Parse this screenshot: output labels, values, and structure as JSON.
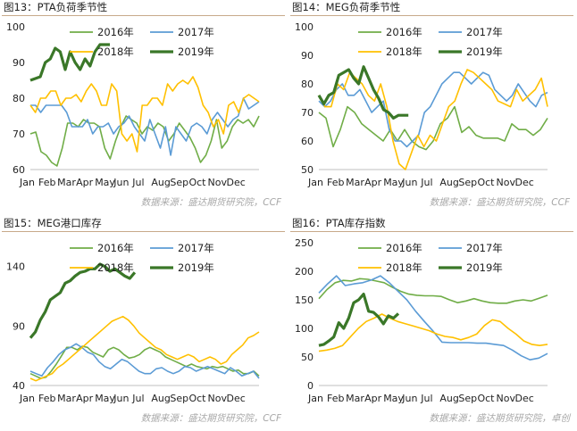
{
  "source_note": "数据来源：盛达期货研究院，CCF",
  "source_note_4": "数据来源：盛达期货研究院，卓创",
  "colors": {
    "2016": "#70ad47",
    "2017": "#5b9bd5",
    "2018": "#ffc000",
    "2019": "#3a7728"
  },
  "chart_data": [
    {
      "type": "line",
      "title": "图13：PTA负荷季节性",
      "x_labels": [
        "Jan",
        "Feb",
        "Mar",
        "Apr",
        "May",
        "Jun",
        "Jul",
        "Aug",
        "Sep",
        "Oct",
        "Nov",
        "Dec"
      ],
      "ylim": [
        60,
        100
      ],
      "yticks": [
        60,
        70,
        80,
        90,
        100
      ],
      "series": [
        {
          "name": "2016年",
          "values": [
            70,
            70.5,
            65,
            64,
            62,
            61,
            66,
            73,
            73,
            72,
            74,
            73,
            73,
            72,
            66,
            63,
            68,
            72,
            75,
            74,
            73,
            70,
            72,
            71,
            73,
            72,
            68,
            70,
            73,
            71,
            69,
            66,
            62,
            64,
            68,
            74,
            66,
            68,
            72,
            74,
            73,
            74,
            72,
            75
          ]
        },
        {
          "name": "2017年",
          "values": [
            78,
            78,
            76,
            78,
            78,
            78,
            78,
            76,
            72,
            72,
            72,
            74,
            70,
            72,
            72,
            73,
            70,
            72,
            73,
            75,
            72,
            70,
            68,
            74,
            70,
            66,
            72,
            64,
            72,
            70,
            68,
            72,
            73,
            72,
            70,
            74,
            76,
            74,
            72,
            74,
            75,
            80,
            77,
            78,
            79
          ]
        },
        {
          "name": "2018年",
          "values": [
            78,
            76,
            80,
            80,
            82,
            82,
            78,
            80,
            80,
            81,
            79,
            82,
            84,
            82,
            78,
            78,
            84,
            82,
            70,
            68,
            70,
            65,
            78,
            78,
            80,
            80,
            78,
            84,
            82,
            84,
            85,
            84,
            86,
            83,
            78,
            76,
            72,
            74,
            70,
            78,
            79,
            76,
            80,
            81,
            80,
            79
          ]
        },
        {
          "name": "2019年",
          "values": [
            85,
            85.5,
            86,
            90,
            91,
            94,
            93,
            88,
            93,
            90,
            88,
            91,
            89,
            93,
            95,
            95,
            95
          ]
        }
      ]
    },
    {
      "type": "line",
      "title": "图14：MEG负荷季节性",
      "x_labels": [
        "Jan",
        "Feb",
        "Mar",
        "Apr",
        "May",
        "Jun",
        "Jul",
        "Aug",
        "Sep",
        "Oct",
        "Nov",
        "Dec"
      ],
      "ylim": [
        50,
        100
      ],
      "yticks": [
        50,
        60,
        70,
        80,
        90,
        100
      ],
      "series": [
        {
          "name": "2016年",
          "values": [
            70,
            68,
            58,
            64,
            72,
            70,
            66,
            64,
            62,
            60,
            64,
            60,
            64,
            60,
            58,
            57,
            60,
            66,
            68,
            72,
            63,
            65,
            62,
            61,
            61,
            61,
            60,
            66,
            64,
            64,
            62,
            64,
            68
          ]
        },
        {
          "name": "2017年",
          "values": [
            74,
            72,
            74,
            78,
            80,
            76,
            76,
            78,
            74,
            70,
            72,
            74,
            64,
            60,
            60,
            58,
            60,
            62,
            70,
            72,
            76,
            80,
            82,
            84,
            84,
            82,
            80,
            82,
            84,
            83,
            78,
            76,
            74,
            76,
            80,
            77,
            74,
            72,
            76,
            77
          ]
        },
        {
          "name": "2018年",
          "values": [
            76,
            72,
            72,
            80,
            78,
            84,
            82,
            80,
            76,
            74,
            80,
            72,
            60,
            52,
            50,
            56,
            62,
            58,
            62,
            60,
            66,
            72,
            74,
            80,
            85,
            84,
            82,
            80,
            78,
            74,
            73,
            72,
            78,
            74,
            76,
            78,
            82,
            72
          ]
        },
        {
          "name": "2019年",
          "values": [
            76,
            73,
            76,
            77,
            83,
            84,
            85,
            82,
            80,
            86,
            82,
            78,
            75,
            71,
            70,
            68,
            69,
            69,
            69
          ]
        }
      ]
    },
    {
      "type": "line",
      "title": "图15：MEG港口库存",
      "x_labels": [
        "Jan",
        "Feb",
        "Mar",
        "Apr",
        "May",
        "Jun",
        "Jul",
        "Aug",
        "Sep",
        "Oct",
        "Nov",
        "Dec"
      ],
      "ylim": [
        40,
        160
      ],
      "yticks": [
        40,
        90,
        140
      ],
      "series": [
        {
          "name": "2016年",
          "values": [
            50,
            48,
            46,
            47,
            52,
            58,
            65,
            72,
            72,
            70,
            73,
            72,
            68,
            66,
            64,
            70,
            72,
            70,
            66,
            63,
            64,
            66,
            70,
            72,
            70,
            68,
            64,
            62,
            60,
            58,
            56,
            58,
            56,
            55,
            54,
            56,
            55,
            56,
            54,
            52,
            53,
            50,
            50,
            52,
            48
          ]
        },
        {
          "name": "2017年",
          "values": [
            52,
            50,
            48,
            55,
            60,
            66,
            70,
            72,
            75,
            72,
            68,
            66,
            60,
            56,
            54,
            58,
            62,
            60,
            56,
            52,
            50,
            50,
            54,
            55,
            52,
            50,
            52,
            56,
            55,
            52,
            54,
            56,
            54,
            52,
            50,
            55,
            52,
            48,
            50,
            52,
            46
          ]
        },
        {
          "name": "2018年",
          "values": [
            46,
            44,
            46,
            48,
            50,
            55,
            58,
            62,
            66,
            70,
            74,
            78,
            82,
            86,
            90,
            94,
            96,
            98,
            95,
            90,
            84,
            80,
            76,
            72,
            70,
            66,
            64,
            62,
            64,
            66,
            64,
            60,
            62,
            64,
            62,
            58,
            60,
            66,
            70,
            74,
            80,
            82,
            85
          ]
        },
        {
          "name": "2019年",
          "values": [
            80,
            85,
            95,
            102,
            112,
            115,
            118,
            126,
            128,
            132,
            135,
            136,
            138,
            138,
            142,
            140,
            136,
            138,
            135,
            132,
            130,
            135
          ]
        }
      ]
    },
    {
      "type": "line",
      "title": "图16：PTA库存指数",
      "x_labels": [
        "Jan",
        "Feb",
        "Mar",
        "Apr",
        "May",
        "Jun",
        "Jul",
        "Aug",
        "Sep",
        "Oct",
        "Nov",
        "Dec"
      ],
      "ylim": [
        0,
        250
      ],
      "yticks": [
        0,
        50,
        100,
        150,
        200,
        250
      ],
      "series": [
        {
          "name": "2016年",
          "values": [
            152,
            168,
            180,
            184,
            183,
            187,
            186,
            183,
            180,
            172,
            165,
            160,
            158,
            157,
            157,
            156,
            150,
            145,
            148,
            152,
            148,
            145,
            144,
            144,
            148,
            150,
            148,
            153,
            158
          ]
        },
        {
          "name": "2017年",
          "values": [
            162,
            178,
            192,
            175,
            178,
            180,
            185,
            192,
            180,
            165,
            150,
            130,
            112,
            95,
            76,
            75,
            75,
            75,
            74,
            74,
            72,
            70,
            62,
            52,
            45,
            48,
            56
          ]
        },
        {
          "name": "2018年",
          "values": [
            60,
            62,
            65,
            70,
            85,
            100,
            112,
            118,
            125,
            118,
            112,
            108,
            104,
            100,
            96,
            90,
            86,
            84,
            80,
            84,
            90,
            105,
            115,
            112,
            100,
            90,
            78,
            72,
            70,
            72
          ]
        },
        {
          "name": "2019年",
          "values": [
            70,
            72,
            78,
            85,
            110,
            100,
            118,
            145,
            150,
            160,
            130,
            128,
            120,
            108,
            122,
            118,
            126
          ]
        }
      ]
    }
  ]
}
